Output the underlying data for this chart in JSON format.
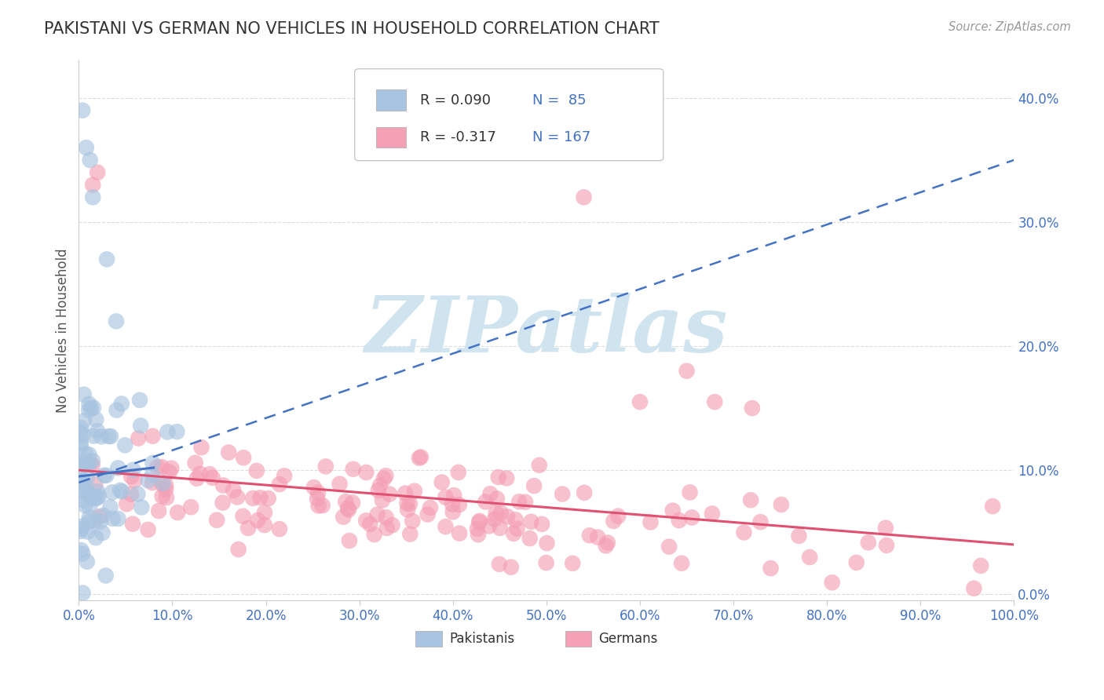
{
  "title": "PAKISTANI VS GERMAN NO VEHICLES IN HOUSEHOLD CORRELATION CHART",
  "source": "Source: ZipAtlas.com",
  "ylabel": "No Vehicles in Household",
  "xlim": [
    0,
    1.0
  ],
  "ylim": [
    -0.005,
    0.43
  ],
  "xtick_vals": [
    0.0,
    0.1,
    0.2,
    0.3,
    0.4,
    0.5,
    0.6,
    0.7,
    0.8,
    0.9,
    1.0
  ],
  "ytick_vals": [
    0.0,
    0.1,
    0.2,
    0.3,
    0.4
  ],
  "ytick_labels": [
    "0.0%",
    "10.0%",
    "20.0%",
    "30.0%",
    "40.0%"
  ],
  "xtick_labels": [
    "0.0%",
    "10.0%",
    "20.0%",
    "30.0%",
    "40.0%",
    "50.0%",
    "60.0%",
    "70.0%",
    "80.0%",
    "90.0%",
    "100.0%"
  ],
  "legend_r1": "R = 0.090",
  "legend_n1": "N =  85",
  "legend_r2": "R = -0.317",
  "legend_n2": "N = 167",
  "color_pakistani": "#A8C4E0",
  "color_german": "#F4A0B5",
  "color_trend_pak": "#4472C4",
  "color_trend_ger": "#E05070",
  "color_title": "#333333",
  "color_source": "#999999",
  "color_tick": "#4472C4",
  "color_grid": "#DDDDDD",
  "color_bg": "#FFFFFF",
  "watermark_text": "ZIPatlas",
  "watermark_color": "#D0E4F0",
  "legend_r_color": "#333333",
  "legend_n_color": "#4472C4"
}
